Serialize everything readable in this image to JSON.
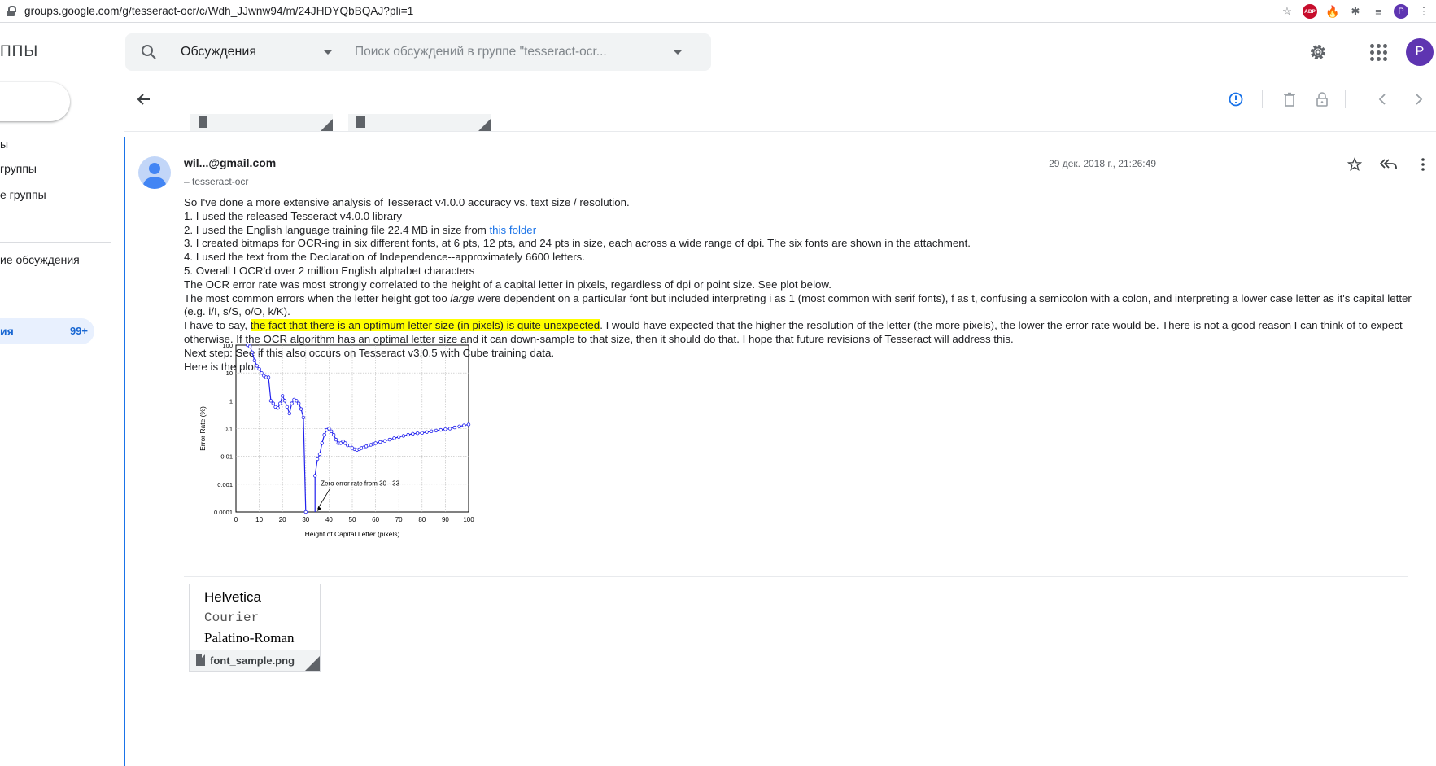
{
  "browser": {
    "url": "groups.google.com/g/tesseract-ocr/c/Wdh_JJwnw94/m/24JHDYQbBQAJ?pli=1",
    "ext_abp": "ABP",
    "profile_initial": "P"
  },
  "header": {
    "brand": "ППЫ",
    "search_scope": "Обсуждения",
    "search_placeholder": "Поиск обсуждений в группе \"tesseract-ocr...",
    "avatar_initial": "P"
  },
  "sidebar": {
    "items": [
      {
        "label": "ы"
      },
      {
        "label": " группы"
      },
      {
        "label": "е группы"
      },
      {
        "label": "ие обсуждения"
      }
    ],
    "active": {
      "label": "ия",
      "count": "99+"
    }
  },
  "message": {
    "sender": "wil...@gmail.com",
    "group": "– tesseract-ocr",
    "date": "29 дек. 2018 г., 21:26:49",
    "body": {
      "l1": "So I've done a more extensive analysis of Tesseract v4.0.0 accuracy vs. text size / resolution.",
      "l2": "1. I used the released Tesseract v4.0.0 library",
      "l3_pre": "2. I used the English language training file 22.4 MB in size from ",
      "l3_link": "this folder",
      "l4": "3. I created bitmaps for OCR-ing in six different fonts, at 6 pts, 12 pts, and 24 pts in size, each across a wide range of dpi.  The six fonts are shown in the attachment.",
      "l5": "4. I used the text from the Declaration of Independence--approximately 6600 letters.",
      "l6": "5. Overall I OCR'd over 2 million English alphabet characters",
      "l7": "The OCR error rate was most strongly correlated to the height of a capital letter in pixels, regardless of dpi or point size.  See plot below.",
      "l8_pre": "The most common errors when the letter height got too ",
      "l8_em": "large",
      "l8_post": " were dependent on a particular font but included interpreting i as 1 (most common with serif fonts), f as t, confusing a semicolon with a colon, and interpreting a lower case letter as it's capital letter (e.g. i/I, s/S, o/O, k/K).",
      "l9_pre": "I have to say, ",
      "l9_hl": "the fact that there is an optimum letter size (in pixels) is quite unexpected",
      "l9_post": ".  I would have expected that the higher the resolution of the letter (the more pixels), the lower the error rate would be.  There is not a good reason I can think of to expect otherwise.  If the OCR algorithm has an optimal letter size and it can down-sample to that size, then it should do that.  I hope that future revisions of Tesseract will address this.",
      "l10": "Next step:  See if this also occurs on Tesseract v3.0.5 with Cube training data.",
      "l11": "Here is the plot:"
    },
    "attachment": {
      "fonts": [
        "Helvetica",
        "Courier",
        "Palatino-Roman"
      ],
      "filename": "font_sample.png"
    }
  },
  "chart_data": {
    "type": "line",
    "xlabel": "Height of Capital Letter (pixels)",
    "ylabel": "Error Rate (%)",
    "xlim": [
      0,
      100
    ],
    "ylim": [
      0.0001,
      100
    ],
    "yscale": "log",
    "grid": true,
    "x_ticks": [
      "0",
      "10",
      "20",
      "30",
      "40",
      "50",
      "60",
      "70",
      "80",
      "90",
      "100"
    ],
    "y_ticks": [
      "100",
      "10",
      "1",
      "0.1",
      "0.01",
      "0.001",
      "0.0001"
    ],
    "annotation": {
      "text": "Zero error rate from 30 - 33",
      "x": 35,
      "y": 0.0001
    },
    "series": [
      {
        "color": "#2222ee",
        "x": [
          5,
          6,
          7,
          8,
          9,
          10,
          11,
          12,
          13,
          14,
          15,
          16,
          17,
          18,
          19,
          20,
          21,
          22,
          23,
          24,
          25,
          26,
          27,
          28,
          29,
          30,
          34,
          35,
          36,
          37,
          38,
          39,
          40,
          41,
          42,
          43,
          44,
          45,
          46,
          47,
          48,
          49,
          50,
          51,
          52,
          53,
          54,
          55,
          56,
          57,
          58,
          59,
          60,
          62,
          64,
          66,
          68,
          70,
          72,
          74,
          76,
          78,
          80,
          82,
          84,
          86,
          88,
          90,
          92,
          94,
          96,
          98,
          100
        ],
        "y": [
          100,
          90,
          55,
          28,
          18,
          14,
          10,
          8,
          7,
          7,
          1,
          0.8,
          0.6,
          0.55,
          0.8,
          1.5,
          1.0,
          0.6,
          0.35,
          0.8,
          1.1,
          1.0,
          0.8,
          0.5,
          0.25,
          0.0001,
          0.002,
          0.008,
          0.012,
          0.03,
          0.06,
          0.09,
          0.1,
          0.08,
          0.06,
          0.04,
          0.03,
          0.03,
          0.035,
          0.03,
          0.025,
          0.025,
          0.02,
          0.018,
          0.017,
          0.018,
          0.02,
          0.021,
          0.023,
          0.025,
          0.026,
          0.028,
          0.03,
          0.033,
          0.036,
          0.04,
          0.045,
          0.05,
          0.055,
          0.06,
          0.065,
          0.068,
          0.07,
          0.075,
          0.08,
          0.085,
          0.09,
          0.095,
          0.1,
          0.11,
          0.12,
          0.13,
          0.14
        ]
      }
    ]
  }
}
